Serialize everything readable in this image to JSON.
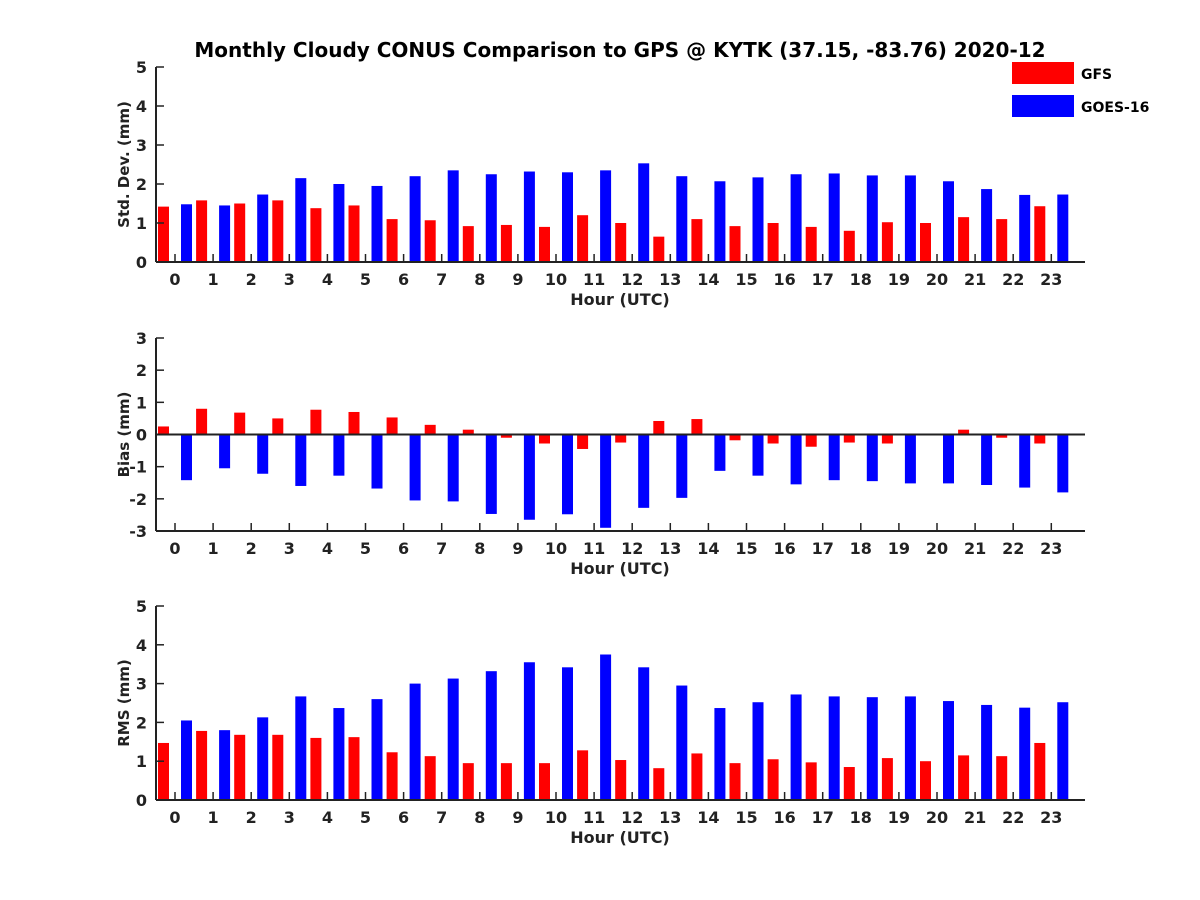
{
  "title": "Monthly Cloudy CONUS Comparison to GPS @ KYTK (37.15, -83.76) 2020-12",
  "legend": [
    {
      "label": "GFS",
      "color": "#ff0000"
    },
    {
      "label": "GOES-16",
      "color": "#0000ff"
    }
  ],
  "chart_data": [
    {
      "type": "bar",
      "title": "Monthly Cloudy CONUS Comparison to GPS @ KYTK (37.15, -83.76) 2020-12",
      "xlabel": "Hour (UTC)",
      "ylabel": "Std. Dev. (mm)",
      "ylim": [
        0,
        5
      ],
      "yticks": [
        "0",
        "1",
        "2",
        "3",
        "4",
        "5"
      ],
      "categories": [
        "0",
        "1",
        "2",
        "3",
        "4",
        "5",
        "6",
        "7",
        "8",
        "9",
        "10",
        "11",
        "12",
        "13",
        "14",
        "15",
        "16",
        "17",
        "18",
        "19",
        "20",
        "21",
        "22",
        "23"
      ],
      "series": [
        {
          "name": "GFS",
          "color": "#ff0000",
          "values": [
            1.42,
            1.58,
            1.5,
            1.58,
            1.38,
            1.45,
            1.1,
            1.07,
            0.92,
            0.95,
            0.9,
            1.2,
            1.0,
            0.65,
            1.1,
            0.92,
            1.0,
            0.9,
            0.8,
            1.02,
            1.0,
            1.15,
            1.1,
            1.43
          ]
        },
        {
          "name": "GOES-16",
          "color": "#0000ff",
          "values": [
            1.48,
            1.45,
            1.73,
            2.15,
            2.0,
            1.95,
            2.2,
            2.35,
            2.25,
            2.32,
            2.3,
            2.35,
            2.53,
            2.2,
            2.07,
            2.17,
            2.25,
            2.27,
            2.22,
            2.22,
            2.07,
            1.87,
            1.72,
            1.73
          ]
        }
      ]
    },
    {
      "type": "bar",
      "xlabel": "Hour (UTC)",
      "ylabel": "Bias (mm)",
      "ylim": [
        -3,
        3
      ],
      "yticks": [
        "-3",
        "-2",
        "-1",
        "0",
        "1",
        "2",
        "3"
      ],
      "categories": [
        "0",
        "1",
        "2",
        "3",
        "4",
        "5",
        "6",
        "7",
        "8",
        "9",
        "10",
        "11",
        "12",
        "13",
        "14",
        "15",
        "16",
        "17",
        "18",
        "19",
        "20",
        "21",
        "22",
        "23"
      ],
      "series": [
        {
          "name": "GFS",
          "color": "#ff0000",
          "values": [
            0.25,
            0.8,
            0.68,
            0.5,
            0.77,
            0.7,
            0.53,
            0.3,
            0.15,
            -0.1,
            -0.28,
            -0.45,
            -0.25,
            0.42,
            0.48,
            -0.18,
            -0.28,
            -0.38,
            -0.25,
            -0.28,
            -0.03,
            0.15,
            -0.1,
            -0.28
          ]
        },
        {
          "name": "GOES-16",
          "color": "#0000ff",
          "values": [
            -1.42,
            -1.05,
            -1.22,
            -1.6,
            -1.28,
            -1.68,
            -2.05,
            -2.08,
            -2.47,
            -2.65,
            -2.48,
            -2.9,
            -2.28,
            -1.97,
            -1.13,
            -1.28,
            -1.55,
            -1.42,
            -1.45,
            -1.52,
            -1.52,
            -1.57,
            -1.65,
            -1.8
          ]
        }
      ]
    },
    {
      "type": "bar",
      "xlabel": "Hour (UTC)",
      "ylabel": "RMS (mm)",
      "ylim": [
        0,
        5
      ],
      "yticks": [
        "0",
        "1",
        "2",
        "3",
        "4",
        "5"
      ],
      "categories": [
        "0",
        "1",
        "2",
        "3",
        "4",
        "5",
        "6",
        "7",
        "8",
        "9",
        "10",
        "11",
        "12",
        "13",
        "14",
        "15",
        "16",
        "17",
        "18",
        "19",
        "20",
        "21",
        "22",
        "23"
      ],
      "series": [
        {
          "name": "GFS",
          "color": "#ff0000",
          "values": [
            1.47,
            1.78,
            1.68,
            1.68,
            1.6,
            1.62,
            1.23,
            1.13,
            0.95,
            0.95,
            0.95,
            1.28,
            1.03,
            0.82,
            1.2,
            0.95,
            1.05,
            0.97,
            0.85,
            1.08,
            1.0,
            1.15,
            1.13,
            1.47
          ]
        },
        {
          "name": "GOES-16",
          "color": "#0000ff",
          "values": [
            2.05,
            1.8,
            2.13,
            2.67,
            2.37,
            2.6,
            3.0,
            3.13,
            3.32,
            3.55,
            3.42,
            3.75,
            3.42,
            2.95,
            2.37,
            2.52,
            2.72,
            2.67,
            2.65,
            2.67,
            2.55,
            2.45,
            2.38,
            2.52
          ]
        }
      ]
    }
  ]
}
